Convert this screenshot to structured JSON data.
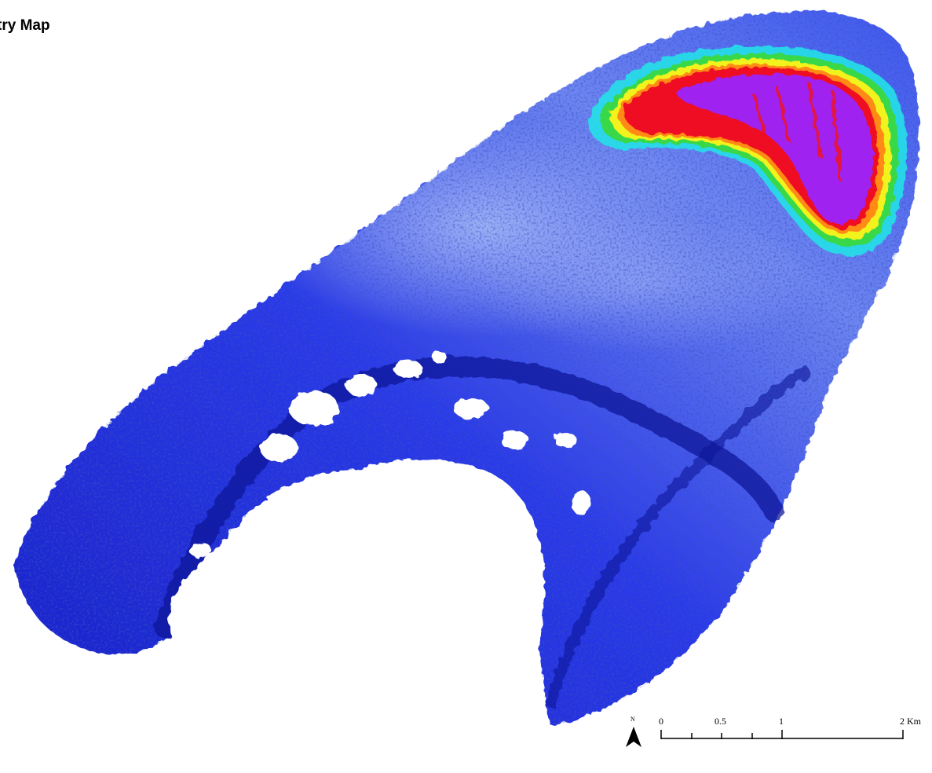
{
  "map": {
    "title": "try Map",
    "colors": {
      "deep_navy": "#0a1a9a",
      "blue": "#1f2fe6",
      "bright_blue": "#3c5cff",
      "pale_blue": "#8ea8f5",
      "cyan": "#22e0e8",
      "green": "#39d84a",
      "yellow": "#f2f21e",
      "orange": "#ff8a12",
      "red": "#ee1020",
      "violet": "#a020f0"
    },
    "north_arrow": {
      "label": "N",
      "icon": "north-arrow-icon"
    },
    "scale_bar": {
      "unit": "Km",
      "labels": [
        "0",
        "0.5",
        "1",
        "2 Km"
      ]
    }
  }
}
